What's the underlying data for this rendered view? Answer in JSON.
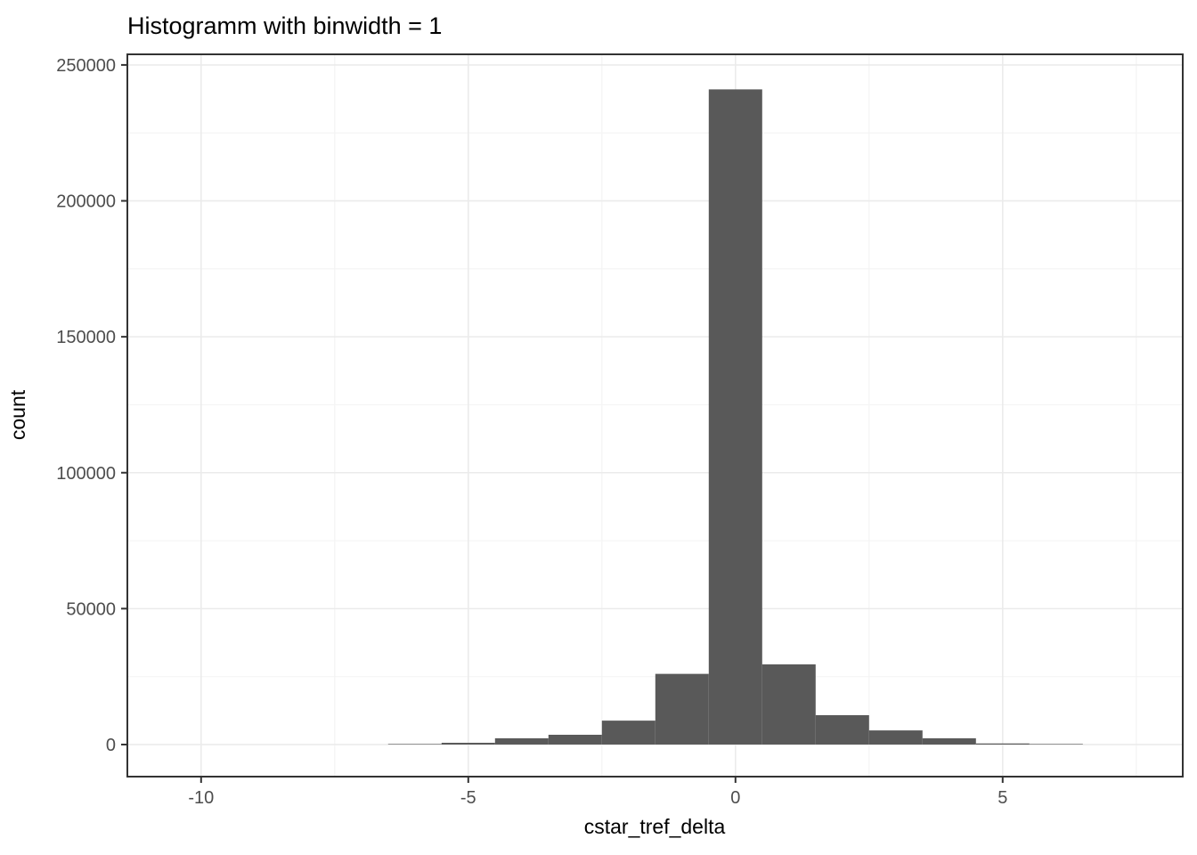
{
  "figure": {
    "title": "Histogramm with binwidth = 1",
    "xlabel": "cstar_tref_delta",
    "ylabel": "count"
  },
  "chart_data": {
    "type": "bar",
    "subtype": "histogram",
    "title": "Histogramm with binwidth = 1",
    "xlabel": "cstar_tref_delta",
    "ylabel": "count",
    "binwidth": 1,
    "bin_centers": [
      -6,
      -5,
      -4,
      -3,
      -2,
      -1,
      0,
      1,
      2,
      3,
      4,
      5,
      6
    ],
    "counts": [
      200,
      650,
      2300,
      3600,
      8800,
      26000,
      241000,
      29500,
      10800,
      5200,
      2300,
      400,
      200
    ],
    "x_ticks": [
      -10,
      -5,
      0,
      5
    ],
    "x_tick_labels": [
      "-10",
      "-5",
      "0",
      "5"
    ],
    "x_minor_ticks": [
      -7.5,
      -2.5,
      2.5,
      7.5
    ],
    "y_ticks": [
      0,
      50000,
      100000,
      150000,
      200000,
      250000
    ],
    "y_tick_labels": [
      "0",
      "50000",
      "100000",
      "150000",
      "200000",
      "250000"
    ],
    "y_minor_ticks": [
      25000,
      75000,
      125000,
      175000,
      225000
    ],
    "x_domain": [
      -11.38,
      8.37
    ],
    "y_domain": [
      -11800,
      253900
    ],
    "grid": true,
    "legend": false,
    "colors": {
      "bar_fill": "#595959",
      "panel_border": "#333333",
      "grid_major": "#EBEBEB",
      "grid_minor": "#F4F4F4",
      "axis_tick": "#333333",
      "tick_label": "#4D4D4D",
      "text": "#000000",
      "background": "#FFFFFF"
    }
  }
}
